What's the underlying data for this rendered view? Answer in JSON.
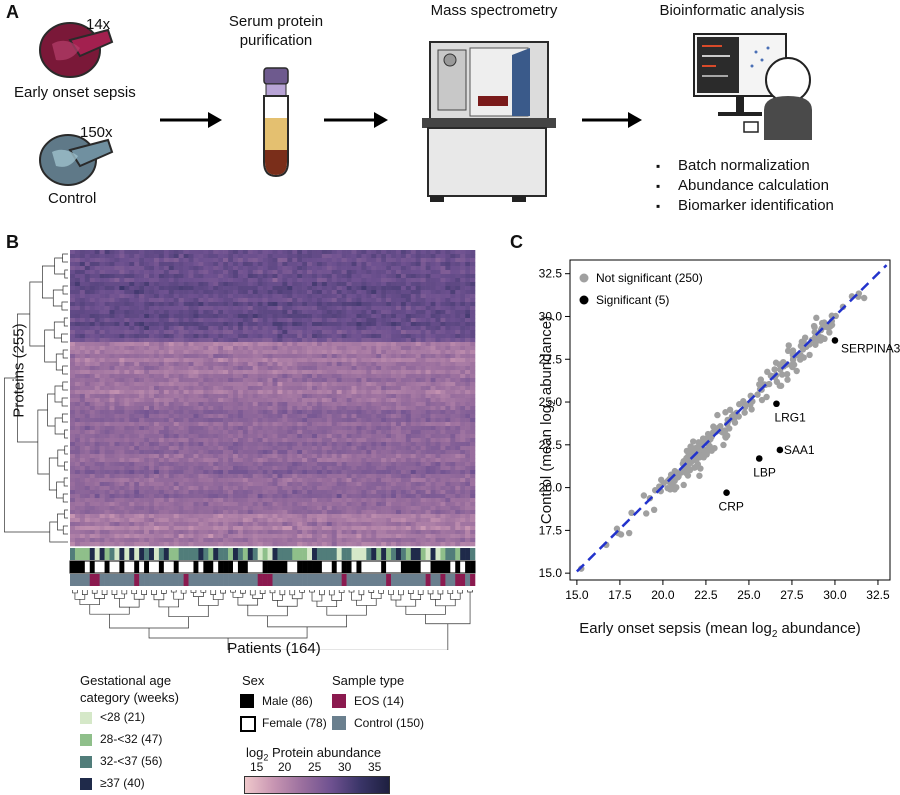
{
  "panel_a": {
    "letter": "A",
    "early_count": "14x",
    "early_label": "Early onset sepsis",
    "control_count": "150x",
    "control_label": "Control",
    "step_purification": "Serum protein\npurification",
    "step_ms": "Mass spectrometry",
    "step_bio": "Bioinformatic analysis",
    "bullets": [
      "Batch normalization",
      "Abundance calculation",
      "Biomarker identification"
    ]
  },
  "panel_b": {
    "letter": "B",
    "y_label": "Proteins (255)",
    "x_label": "Patients (164)",
    "legend": {
      "gest_title": "Gestational age\ncategory (weeks)",
      "gest_items": [
        {
          "label": "<28 (21)",
          "color": "#d5e8c8"
        },
        {
          "label": "28-<32 (47)",
          "color": "#8fbf8a"
        },
        {
          "label": "32-<37 (56)",
          "color": "#517d7a"
        },
        {
          "label": "≥37 (40)",
          "color": "#1f2a4a"
        }
      ],
      "sex_title": "Sex",
      "sex_items": [
        {
          "label": "Male (86)",
          "color": "#000000"
        },
        {
          "label": "Female (78)",
          "color": "#ffffff"
        }
      ],
      "type_title": "Sample type",
      "type_items": [
        {
          "label": "EOS (14)",
          "color": "#8b1a4f"
        },
        {
          "label": "Control (150)",
          "color": "#6a7f8e"
        }
      ],
      "scale_title_pre": "log",
      "scale_title_sub": "2",
      "scale_title_post": " Protein abundance",
      "scale_ticks": [
        "15",
        "20",
        "25",
        "30",
        "35"
      ]
    }
  },
  "chart_data": {
    "type": "scatter",
    "panel_letter": "C",
    "xlabel_pre": "Early onset sepsis (mean log",
    "xlabel_sub": "2",
    "xlabel_post": " abundance)",
    "ylabel_pre": "Control (mean log",
    "ylabel_sub": "2",
    "ylabel_post": " abundance)",
    "xlim": [
      14.6,
      33.2
    ],
    "ylim": [
      14.6,
      33.3
    ],
    "x_ticks": [
      15.0,
      17.5,
      20.0,
      22.5,
      25.0,
      27.5,
      30.0,
      32.5
    ],
    "y_ticks": [
      15.0,
      17.5,
      20.0,
      22.5,
      25.0,
      27.5,
      30.0,
      32.5
    ],
    "legend_position": "top-left",
    "series": [
      {
        "name": "Not significant (250)",
        "color": "#a0a0a0",
        "n": 250
      },
      {
        "name": "Significant (5)",
        "color": "#000000",
        "points": [
          {
            "label": "SERPINA3",
            "x": 30.0,
            "y": 28.6
          },
          {
            "label": "LRG1",
            "x": 26.6,
            "y": 24.9
          },
          {
            "label": "SAA1",
            "x": 26.8,
            "y": 22.2
          },
          {
            "label": "LBP",
            "x": 25.6,
            "y": 21.7
          },
          {
            "label": "CRP",
            "x": 23.7,
            "y": 19.7
          }
        ]
      }
    ],
    "identity_line": {
      "color": "#2233cc",
      "from": [
        15.0,
        15.1
      ],
      "to": [
        33.0,
        33.0
      ]
    }
  }
}
